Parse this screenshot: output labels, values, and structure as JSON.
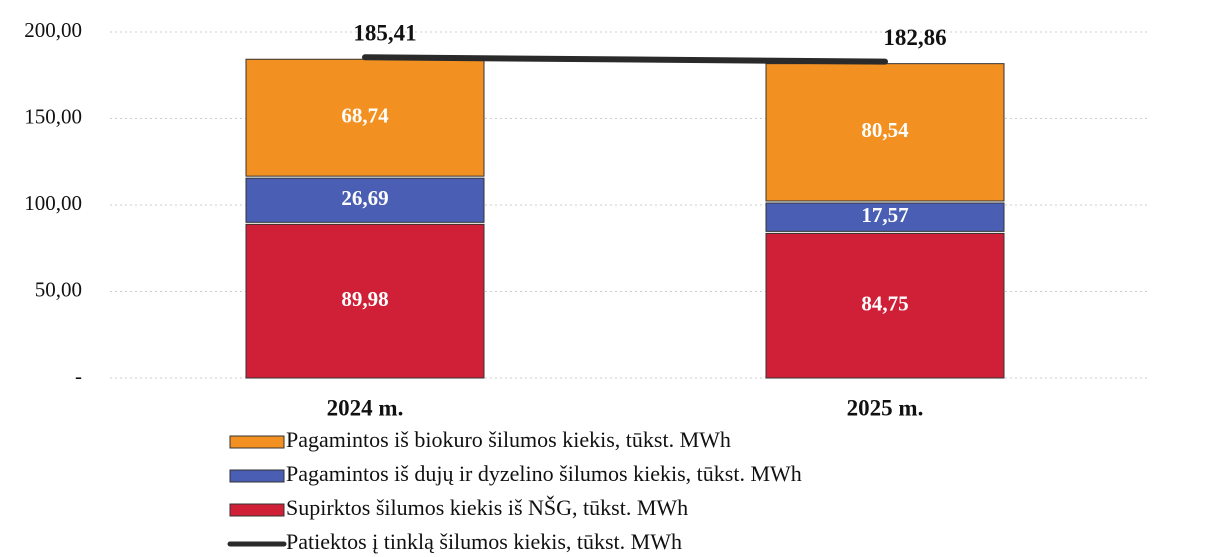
{
  "chart_data": {
    "type": "bar",
    "stacked": true,
    "grid": true,
    "categories": [
      "2024 m.",
      "2025 m."
    ],
    "ylim": [
      0,
      200
    ],
    "yticks": [
      {
        "value": 0,
        "label": "-"
      },
      {
        "value": 50,
        "label": "50,00"
      },
      {
        "value": 100,
        "label": "100,00"
      },
      {
        "value": 150,
        "label": "150,00"
      },
      {
        "value": 200,
        "label": "200,00"
      }
    ],
    "series": [
      {
        "name": "Pagamintos iš biokuro šilumos kiekis, tūkst. MWh",
        "color": "#f29121",
        "values": [
          68.74,
          80.54
        ],
        "value_labels": [
          "68,74",
          "80,54"
        ]
      },
      {
        "name": "Pagamintos iš dujų ir dyzelino šilumos kiekis, tūkst. MWh",
        "color": "#4a5fb3",
        "values": [
          26.69,
          17.57
        ],
        "value_labels": [
          "26,69",
          "17,57"
        ]
      },
      {
        "name": "Supirktos šilumos kiekis iš NŠG, tūkst. MWh",
        "color": "#cf2038",
        "values": [
          89.98,
          84.75
        ],
        "value_labels": [
          "89,98",
          "84,75"
        ]
      },
      {
        "name": "Patiektos į tinklą šilumos kiekis, tūkst. MWh",
        "color": "#2a2a2a",
        "type": "line",
        "values": [
          185.41,
          182.86
        ],
        "value_labels": [
          "185,41",
          "182,86"
        ]
      }
    ]
  }
}
